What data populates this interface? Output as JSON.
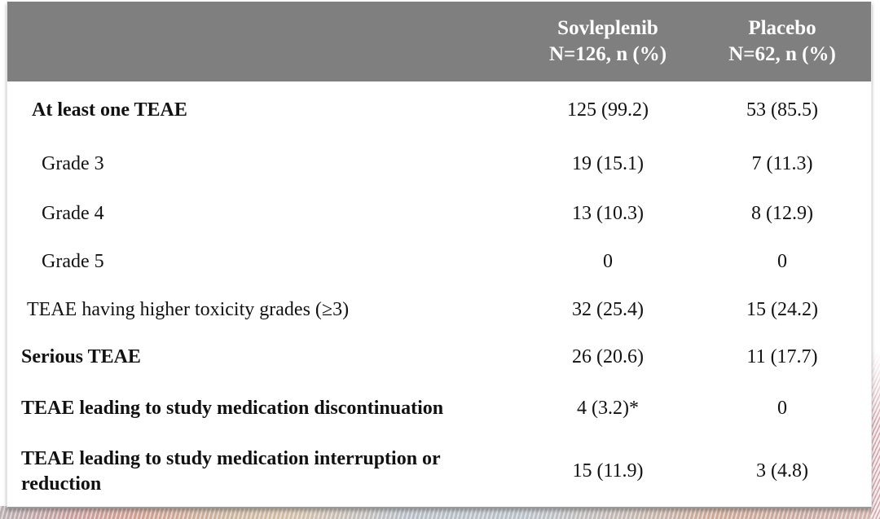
{
  "header": {
    "bg_color": "#7f7f7f",
    "text_color": "#ffffff",
    "blank": "",
    "col1": {
      "line1": "Sovleplenib",
      "line2": "N=126, n (%)"
    },
    "col2": {
      "line1": "Placebo",
      "line2": "N=62, n (%)"
    }
  },
  "rows": [
    {
      "label": "At least one TEAE",
      "sovleplenib": "125 (99.2)",
      "placebo": "53 (85.5)"
    },
    {
      "label": "Grade 3",
      "sovleplenib": "19 (15.1)",
      "placebo": "7 (11.3)"
    },
    {
      "label": "Grade 4",
      "sovleplenib": "13 (10.3)",
      "placebo": "8 (12.9)"
    },
    {
      "label": "Grade 5",
      "sovleplenib": "0",
      "placebo": "0"
    },
    {
      "label": "TEAE having higher toxicity grades (≥3)",
      "sovleplenib": "32 (25.4)",
      "placebo": "15 (24.2)"
    },
    {
      "label": "Serious TEAE",
      "sovleplenib": "26 (20.6)",
      "placebo": "11 (17.7)"
    },
    {
      "label": "TEAE leading to study medication discontinuation",
      "sovleplenib": "4 (3.2)*",
      "placebo": "0"
    },
    {
      "label": "TEAE leading to study medication interruption or reduction",
      "sovleplenib": "15 (11.9)",
      "placebo": "3 (4.8)"
    }
  ]
}
